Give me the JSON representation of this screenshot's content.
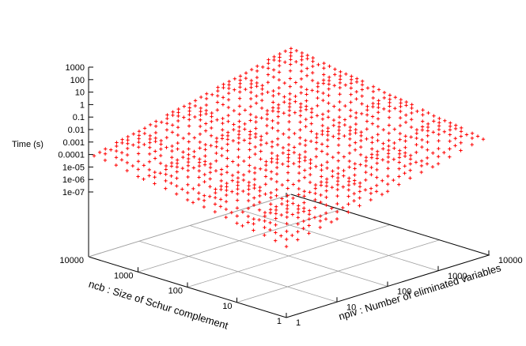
{
  "chart_data": {
    "type": "scatter",
    "title": "",
    "zlabel": "Time (s)",
    "xlabel": "npiv : Number of eliminated variables",
    "ylabel": "ncb : Size of Schur complement",
    "z_scale": "log",
    "x_scale": "log",
    "y_scale": "log",
    "z_ticks": [
      "1000",
      "100",
      "10",
      "1",
      "0.1",
      "0.01",
      "0.001",
      "0.0001",
      "1e-05",
      "1e-06",
      "1e-07"
    ],
    "x_ticks": [
      "1",
      "10",
      "100",
      "1000",
      "10000"
    ],
    "y_ticks": [
      "1",
      "10",
      "100",
      "1000",
      "10000"
    ],
    "xlim": [
      1,
      10000
    ],
    "ylim": [
      1,
      10000
    ],
    "zlim": [
      1e-07,
      1000
    ],
    "grid": true,
    "marker": "+",
    "series": [
      {
        "color": "#ff0000",
        "note_x_values": "npiv sampled on a log grid, 1 to 10000",
        "x": [
          1,
          10,
          100,
          1000,
          10000
        ],
        "y": [
          1,
          10,
          100,
          1000,
          10000
        ],
        "z_min": 1e-07,
        "z_max": 1000
      }
    ]
  }
}
